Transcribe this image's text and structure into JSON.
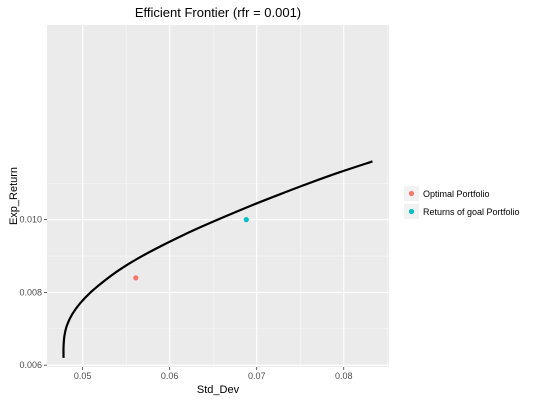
{
  "chart_data": {
    "type": "line",
    "title": "Efficient Frontier (rfr = 0.001)",
    "xlabel": "Std_Dev",
    "ylabel": "Exp_Return",
    "xlim": [
      0.0459,
      0.0852
    ],
    "ylim": [
      0.00595,
      0.01535
    ],
    "x_ticks": [
      0.05,
      0.06,
      0.07,
      0.08
    ],
    "x_tick_labels": [
      "0.05",
      "0.06",
      "0.07",
      "0.08"
    ],
    "y_ticks": [
      0.006,
      0.008,
      0.01
    ],
    "y_tick_labels": [
      "0.006",
      "0.008",
      "0.010"
    ],
    "grid": true,
    "panel_background": "#ebebeb",
    "frontier": {
      "color": "#000000",
      "x": [
        0.0478,
        0.0478,
        0.0479,
        0.0482,
        0.0488,
        0.0497,
        0.0509,
        0.0524,
        0.0541,
        0.0561,
        0.0584,
        0.0609,
        0.0636,
        0.0665,
        0.0695,
        0.0727,
        0.076,
        0.0795,
        0.0833
      ],
      "y": [
        0.0062,
        0.0065,
        0.0068,
        0.0071,
        0.0074,
        0.0077,
        0.008,
        0.0083,
        0.0086,
        0.0089,
        0.0092,
        0.0095,
        0.0098,
        0.0101,
        0.0104,
        0.0107,
        0.011,
        0.0113,
        0.0116
      ]
    },
    "points": [
      {
        "name": "Optimal Portfolio",
        "x": 0.0561,
        "y": 0.0084,
        "color": "#f8766d"
      },
      {
        "name": "Returns of goal Portfolio",
        "x": 0.0688,
        "y": 0.01,
        "color": "#00bfc4"
      }
    ],
    "legend_position": "right"
  }
}
